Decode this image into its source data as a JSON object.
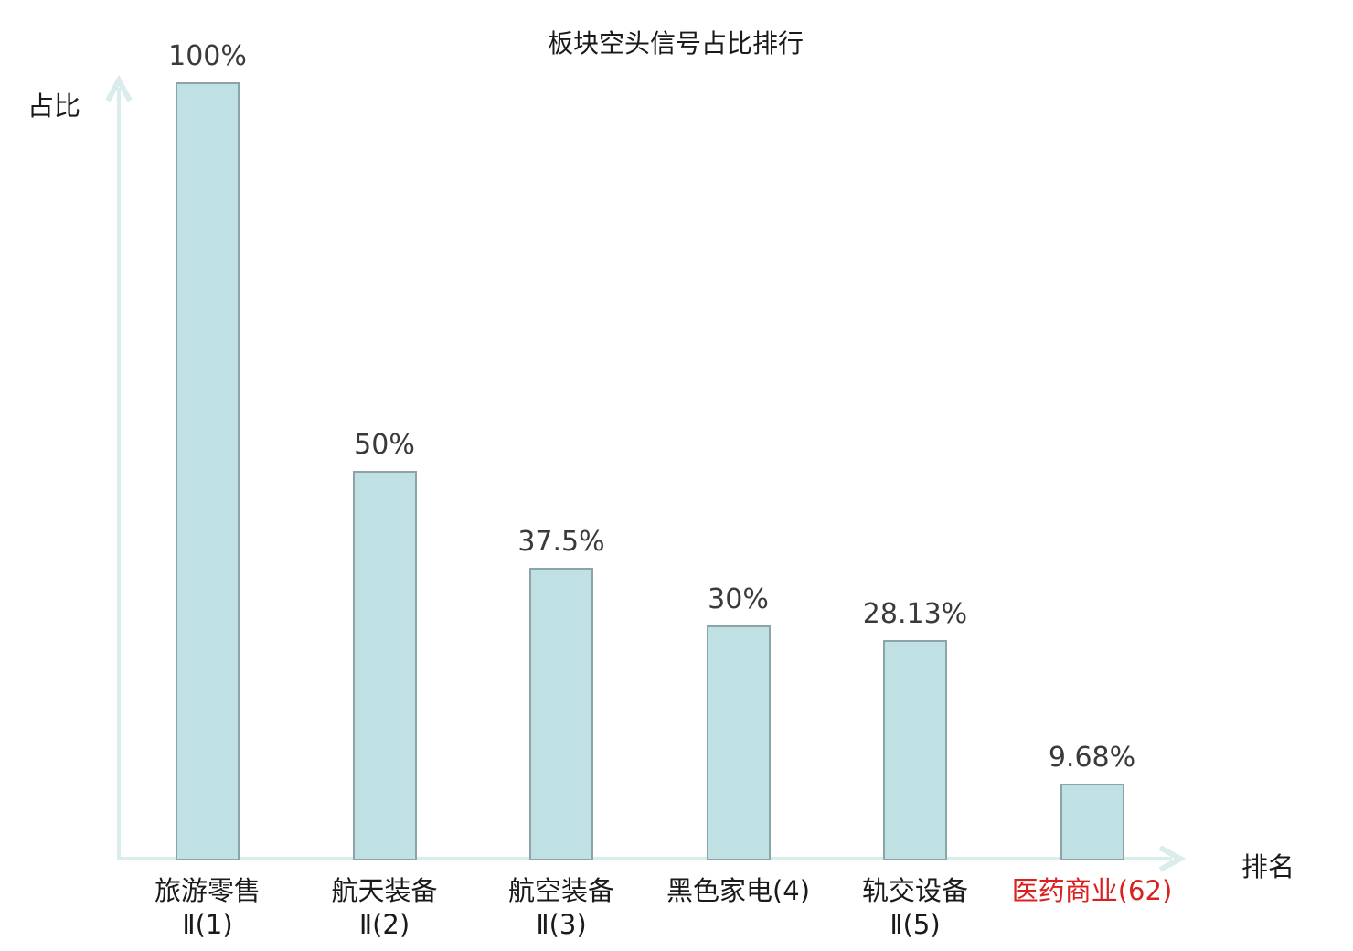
{
  "chart_data": {
    "type": "bar",
    "title": "板块空头信号占比排行",
    "xlabel": "排名",
    "ylabel": "占比",
    "ylim": [
      0,
      100
    ],
    "grid": false,
    "legend": "none",
    "categories": [
      "旅游零售Ⅱ(1)",
      "航天装备Ⅱ(2)",
      "航空装备Ⅱ(3)",
      "黑色家电(4)",
      "轨交设备Ⅱ(5)",
      "医药商业(62)"
    ],
    "values": [
      100,
      50,
      37.5,
      30,
      28.13,
      9.68
    ],
    "bars": [
      {
        "label_line1": "旅游零售",
        "label_line2": "Ⅱ(1)",
        "value": 100,
        "value_label": "100%",
        "highlight": false
      },
      {
        "label_line1": "航天装备",
        "label_line2": "Ⅱ(2)",
        "value": 50,
        "value_label": "50%",
        "highlight": false
      },
      {
        "label_line1": "航空装备",
        "label_line2": "Ⅱ(3)",
        "value": 37.5,
        "value_label": "37.5%",
        "highlight": false
      },
      {
        "label_line1": "黑色家电(4)",
        "label_line2": "",
        "value": 30,
        "value_label": "30%",
        "highlight": false
      },
      {
        "label_line1": "轨交设备",
        "label_line2": "Ⅱ(5)",
        "value": 28.13,
        "value_label": "28.13%",
        "highlight": false
      },
      {
        "label_line1": "医药商业(62)",
        "label_line2": "",
        "value": 9.68,
        "value_label": "9.68%",
        "highlight": true
      }
    ],
    "colors": {
      "bar_fill": "#bfe1e3",
      "bar_border": "#8ca4a8",
      "axis": "#daeceb",
      "value_label": "#3a3a3a",
      "category_label": "#1a1a1a",
      "highlight_label": "#d92121",
      "background": "#ffffff"
    }
  }
}
